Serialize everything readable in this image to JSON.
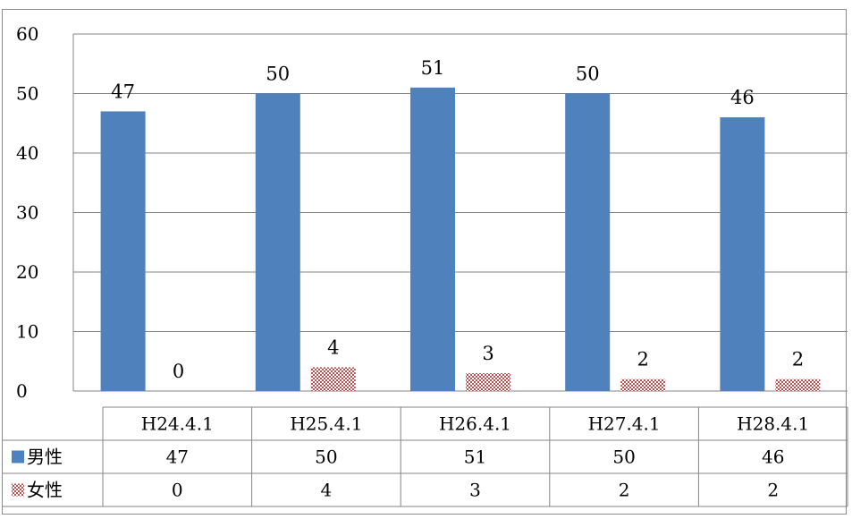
{
  "chart_data": {
    "type": "bar",
    "categories": [
      "H24.4.1",
      "H25.4.1",
      "H26.4.1",
      "H27.4.1",
      "H28.4.1"
    ],
    "series": [
      {
        "name": "男性",
        "values": [
          47,
          50,
          51,
          50,
          46
        ],
        "color": "#4f81bd",
        "pattern": "solid"
      },
      {
        "name": "女性",
        "values": [
          0,
          4,
          3,
          2,
          2
        ],
        "color": "#c0504d",
        "pattern": "checker"
      }
    ],
    "ylim": [
      0,
      60
    ],
    "yticks": [
      0,
      10,
      20,
      30,
      40,
      50,
      60
    ],
    "grid": true,
    "legend": "data-table",
    "data_labels": true,
    "title": "",
    "xlabel": "",
    "ylabel": ""
  }
}
